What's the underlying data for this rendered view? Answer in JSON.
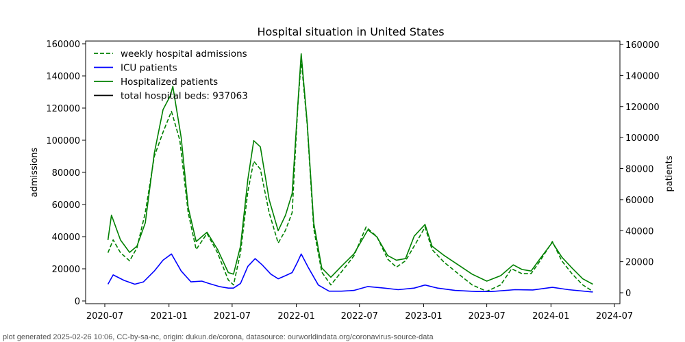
{
  "chart_data": {
    "type": "line",
    "title": "Hospital situation in United States",
    "xlabel": "",
    "ylabel_left": "admissions",
    "ylabel_right": "patients",
    "x_ticks": [
      "2020-07",
      "2021-01",
      "2021-07",
      "2022-01",
      "2022-07",
      "2023-01",
      "2023-07",
      "2024-01",
      "2024-07"
    ],
    "ylim_left": [
      0,
      160000
    ],
    "ylim_right": [
      0,
      160000
    ],
    "y_ticks_left": [
      "0",
      "20000",
      "40000",
      "60000",
      "80000",
      "100000",
      "120000",
      "140000",
      "160000"
    ],
    "y_ticks_right": [
      "0",
      "20000",
      "40000",
      "60000",
      "80000",
      "100000",
      "120000",
      "140000",
      "160000"
    ],
    "grid": false,
    "legend_position": "top-left",
    "legend": [
      {
        "label": "weekly hospital admissions",
        "color": "#008000",
        "style": "dashed"
      },
      {
        "label": "ICU patients",
        "color": "#0000ff",
        "style": "solid"
      },
      {
        "label": "Hospitalized patients",
        "color": "#008000",
        "style": "solid"
      },
      {
        "label": "total hospital beds: 937063",
        "color": "#000000",
        "style": "solid"
      }
    ],
    "series": [
      {
        "name": "weekly hospital admissions",
        "axis": "left",
        "color": "#008000",
        "style": "dashed",
        "x": [
          "2020-07-10",
          "2020-07-25",
          "2020-08-15",
          "2020-09-10",
          "2020-10-01",
          "2020-10-25",
          "2020-11-20",
          "2020-12-15",
          "2021-01-08",
          "2021-02-01",
          "2021-02-25",
          "2021-03-20",
          "2021-04-20",
          "2021-05-20",
          "2021-06-20",
          "2021-07-05",
          "2021-07-25",
          "2021-08-15",
          "2021-09-01",
          "2021-09-20",
          "2021-10-15",
          "2021-11-10",
          "2021-12-01",
          "2021-12-20",
          "2022-01-05",
          "2022-01-15",
          "2022-02-01",
          "2022-02-20",
          "2022-03-15",
          "2022-04-10",
          "2022-05-10",
          "2022-06-15",
          "2022-07-20",
          "2022-08-20",
          "2022-09-20",
          "2022-10-15",
          "2022-11-10",
          "2022-12-10",
          "2023-01-05",
          "2023-01-25",
          "2023-03-01",
          "2023-04-10",
          "2023-05-20",
          "2023-07-01",
          "2023-08-10",
          "2023-09-10",
          "2023-10-10",
          "2023-11-05",
          "2023-12-01",
          "2024-01-05",
          "2024-02-01",
          "2024-03-01",
          "2024-04-01",
          "2024-04-30"
        ],
        "values": [
          30000,
          38000,
          30000,
          25000,
          33000,
          55000,
          90000,
          105000,
          118000,
          100000,
          55000,
          32000,
          42000,
          30000,
          13000,
          10000,
          30000,
          68000,
          87000,
          82000,
          55000,
          36000,
          44000,
          55000,
          120000,
          150000,
          110000,
          45000,
          18000,
          10000,
          18000,
          28000,
          46000,
          40000,
          26000,
          21000,
          25000,
          36000,
          46000,
          32000,
          24000,
          17000,
          10000,
          6000,
          10000,
          20000,
          17000,
          17000,
          25000,
          37000,
          25000,
          17000,
          10000,
          6000
        ]
      },
      {
        "name": "ICU patients",
        "axis": "right",
        "color": "#0000ff",
        "style": "solid",
        "x": [
          "2020-07-10",
          "2020-07-25",
          "2020-08-25",
          "2020-09-25",
          "2020-10-20",
          "2020-11-20",
          "2020-12-15",
          "2021-01-08",
          "2021-02-05",
          "2021-03-05",
          "2021-04-05",
          "2021-04-25",
          "2021-05-25",
          "2021-06-20",
          "2021-07-05",
          "2021-07-25",
          "2021-08-15",
          "2021-09-05",
          "2021-09-25",
          "2021-10-20",
          "2021-11-10",
          "2021-12-01",
          "2021-12-20",
          "2022-01-05",
          "2022-01-15",
          "2022-02-05",
          "2022-03-05",
          "2022-04-05",
          "2022-05-10",
          "2022-06-15",
          "2022-07-25",
          "2022-09-10",
          "2022-10-20",
          "2022-12-05",
          "2023-01-05",
          "2023-02-10",
          "2023-04-01",
          "2023-06-01",
          "2023-07-15",
          "2023-09-20",
          "2023-11-10",
          "2024-01-05",
          "2024-02-20",
          "2024-04-30"
        ],
        "values": [
          5500,
          11500,
          8000,
          5500,
          7000,
          14000,
          21000,
          25000,
          14000,
          7000,
          7500,
          6000,
          4000,
          3000,
          3000,
          6000,
          17000,
          22000,
          18000,
          12000,
          9000,
          11000,
          13000,
          20000,
          25000,
          16000,
          5000,
          1000,
          1000,
          1500,
          4000,
          3000,
          2000,
          3000,
          5000,
          3000,
          1500,
          800,
          800,
          2000,
          1800,
          3500,
          2000,
          500
        ]
      },
      {
        "name": "Hospitalized patients",
        "axis": "right",
        "color": "#008000",
        "style": "solid",
        "x": [
          "2020-07-10",
          "2020-07-20",
          "2020-07-25",
          "2020-08-15",
          "2020-09-10",
          "2020-10-01",
          "2020-10-25",
          "2020-11-20",
          "2020-12-15",
          "2021-01-05",
          "2021-01-12",
          "2021-02-05",
          "2021-02-25",
          "2021-03-20",
          "2021-04-20",
          "2021-05-20",
          "2021-06-20",
          "2021-07-05",
          "2021-07-25",
          "2021-08-15",
          "2021-09-01",
          "2021-09-20",
          "2021-10-15",
          "2021-11-10",
          "2021-12-01",
          "2021-12-20",
          "2022-01-05",
          "2022-01-15",
          "2022-02-01",
          "2022-02-20",
          "2022-03-15",
          "2022-04-10",
          "2022-05-10",
          "2022-06-15",
          "2022-07-25",
          "2022-08-20",
          "2022-09-20",
          "2022-10-15",
          "2022-11-10",
          "2022-12-05",
          "2023-01-05",
          "2023-01-25",
          "2023-03-01",
          "2023-04-10",
          "2023-05-20",
          "2023-07-01",
          "2023-08-10",
          "2023-09-15",
          "2023-10-10",
          "2023-11-05",
          "2023-12-01",
          "2024-01-05",
          "2024-02-01",
          "2024-03-01",
          "2024-04-01",
          "2024-04-30"
        ],
        "values": [
          34000,
          50000,
          47000,
          34000,
          26000,
          30000,
          45000,
          90000,
          118000,
          127000,
          133000,
          100000,
          55000,
          33000,
          39000,
          28000,
          13000,
          12000,
          30000,
          73000,
          98000,
          94000,
          60000,
          40000,
          50000,
          64000,
          120000,
          154000,
          110000,
          45000,
          16000,
          10000,
          17000,
          25000,
          40500,
          36000,
          24000,
          21000,
          22000,
          36500,
          44000,
          30000,
          24000,
          18000,
          12000,
          7500,
          11000,
          18000,
          15000,
          14000,
          22000,
          32500,
          23000,
          16000,
          9000,
          5500
        ]
      }
    ]
  },
  "footer": {
    "text": "plot generated 2025-02-26 10:06, CC-by-sa-nc, origin: dukun.de/corona, datasource: ourworldindata.org/coronavirus-source-data"
  }
}
